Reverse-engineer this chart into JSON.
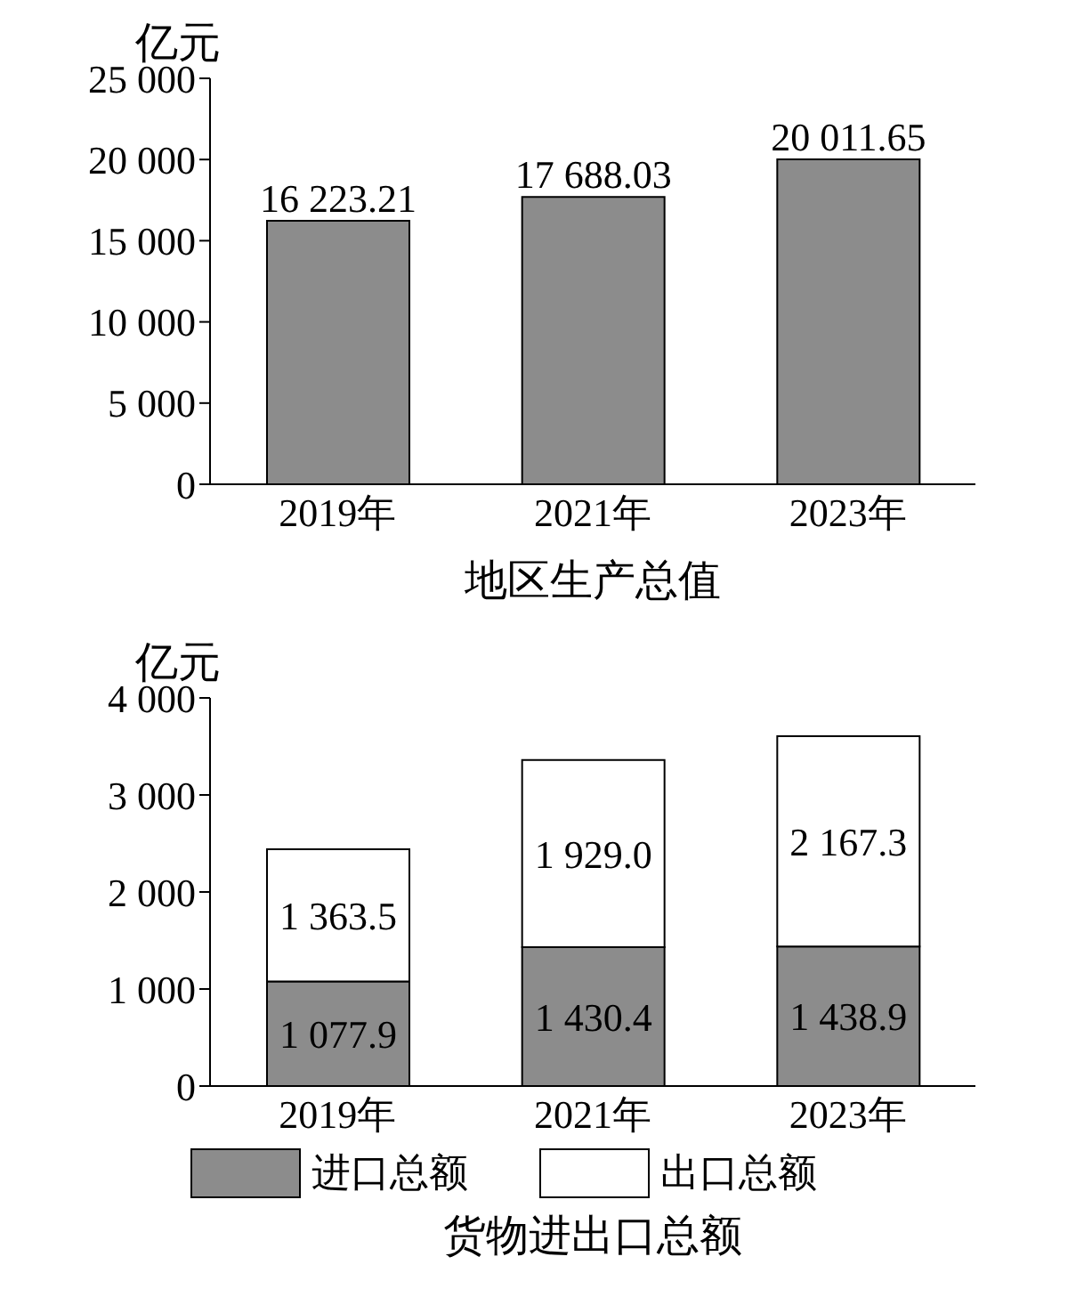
{
  "chart_data": [
    {
      "type": "bar",
      "categories": [
        "2019年",
        "2021年",
        "2023年"
      ],
      "values": [
        16223.21,
        17688.03,
        20011.65
      ],
      "color": "#8c8c8c",
      "value_labels": [
        "16 223.21",
        "17 688.03",
        "20 011.65"
      ],
      "ylabel": "亿元",
      "xlabel": "地区生产总值",
      "ylim": [
        0,
        25000
      ],
      "yticks": [
        {
          "value": 0,
          "label": "0"
        },
        {
          "value": 5000,
          "label": "5 000"
        },
        {
          "value": 10000,
          "label": "10 000"
        },
        {
          "value": 15000,
          "label": "15 000"
        },
        {
          "value": 20000,
          "label": "20 000"
        },
        {
          "value": 25000,
          "label": "25 000"
        }
      ],
      "grid": false,
      "legend": false
    },
    {
      "type": "bar",
      "stacked": true,
      "categories": [
        "2019年",
        "2021年",
        "2023年"
      ],
      "series": [
        {
          "name": "进口总额",
          "color": "#8c8c8c",
          "values": [
            1077.9,
            1430.4,
            1438.9
          ],
          "value_labels": [
            "1 077.9",
            "1 430.4",
            "1 438.9"
          ]
        },
        {
          "name": "出口总额",
          "color": "#ffffff",
          "values": [
            1363.5,
            1929.0,
            2167.3
          ],
          "value_labels": [
            "1 363.5",
            "1 929.0",
            "2 167.3"
          ]
        }
      ],
      "ylabel": "亿元",
      "xlabel": "货物进出口总额",
      "ylim": [
        0,
        4000
      ],
      "yticks": [
        {
          "value": 0,
          "label": "0"
        },
        {
          "value": 1000,
          "label": "1 000"
        },
        {
          "value": 2000,
          "label": "2 000"
        },
        {
          "value": 3000,
          "label": "3 000"
        },
        {
          "value": 4000,
          "label": "4 000"
        }
      ],
      "grid": false,
      "legend": "bottom"
    }
  ]
}
